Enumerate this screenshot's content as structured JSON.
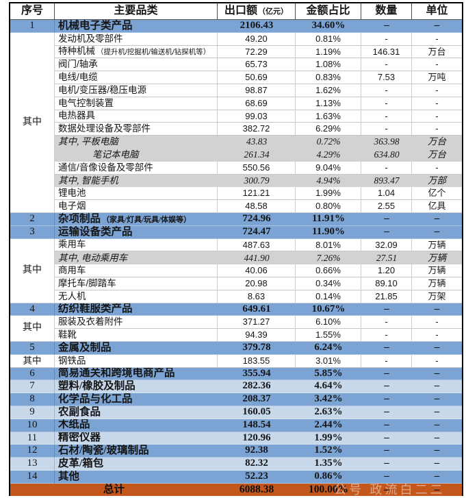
{
  "colors": {
    "blue": "#7BA4D4",
    "blue2": "#C7D8EB",
    "gray": "#D2D2D2",
    "orange": "#C4571C"
  },
  "header": {
    "c1": "序号",
    "c2": "主要品类",
    "c3_main": "出口额",
    "c3_note": "（亿元）",
    "c4": "金额占比",
    "c5": "数量",
    "c6": "单位"
  },
  "watermark": "公号 政流白二二",
  "table": {
    "rows": [
      {
        "type": "cat",
        "no": "1",
        "name": "机械电子类产品",
        "export": "2106.43",
        "share": "34.60%",
        "qty": "–",
        "unit": "–"
      },
      {
        "type": "sub",
        "no": "其中",
        "noRowspan": 14,
        "name": "发动机及零部件",
        "export": "49.20",
        "share": "0.81%",
        "qty": "-",
        "unit": "-"
      },
      {
        "type": "sub",
        "skipNo": true,
        "name": "特种机械",
        "note": "（提升机/挖掘机/输送机/钻探机等）",
        "export": "72.29",
        "share": "1.19%",
        "qty": "146.31",
        "unit": "万台"
      },
      {
        "type": "sub",
        "skipNo": true,
        "name": "阀门/轴承",
        "export": "65.73",
        "share": "1.08%",
        "qty": "-",
        "unit": "-"
      },
      {
        "type": "sub",
        "skipNo": true,
        "name": "电线/电缆",
        "export": "50.69",
        "share": "0.83%",
        "qty": "7.53",
        "unit": "万吨"
      },
      {
        "type": "sub",
        "skipNo": true,
        "name": "电机/变压器/稳压电源",
        "export": "98.87",
        "share": "1.62%",
        "qty": "-",
        "unit": "-"
      },
      {
        "type": "sub",
        "skipNo": true,
        "name": "电气控制装置",
        "export": "68.69",
        "share": "1.13%",
        "qty": "-",
        "unit": "-"
      },
      {
        "type": "sub",
        "skipNo": true,
        "name": "电热器具",
        "export": "99.03",
        "share": "1.63%",
        "qty": "-",
        "unit": "-"
      },
      {
        "type": "sub",
        "skipNo": true,
        "name": "数据处理设备及零部件",
        "export": "382.72",
        "share": "6.29%",
        "qty": "-",
        "unit": "-"
      },
      {
        "type": "gray",
        "skipNo": true,
        "name": "其中, 平板电脑",
        "export": "43.83",
        "share": "0.72%",
        "qty": "363.98",
        "unit": "万台"
      },
      {
        "type": "gray",
        "skipNo": true,
        "indent": true,
        "name": "笔记本电脑",
        "export": "261.34",
        "share": "4.29%",
        "qty": "634.80",
        "unit": "万台"
      },
      {
        "type": "sub",
        "skipNo": true,
        "name": "通信/音像设备及零部件",
        "export": "550.56",
        "share": "9.04%",
        "qty": "-",
        "unit": "-"
      },
      {
        "type": "gray",
        "skipNo": true,
        "name": "其中, 智能手机",
        "export": "300.79",
        "share": "4.94%",
        "qty": "893.47",
        "unit": "万部"
      },
      {
        "type": "sub",
        "skipNo": true,
        "name": "锂电池",
        "export": "121.21",
        "share": "1.99%",
        "qty": "1.04",
        "unit": "亿个"
      },
      {
        "type": "sub",
        "skipNo": true,
        "name": "电子烟",
        "export": "48.58",
        "share": "0.80%",
        "qty": "2.55",
        "unit": "亿具"
      },
      {
        "type": "cat",
        "no": "2",
        "name": "杂项制品",
        "note": "（家具/灯具/玩具/体娱等）",
        "export": "724.96",
        "share": "11.91%",
        "qty": "–",
        "unit": "–"
      },
      {
        "type": "cat",
        "no": "3",
        "name": "运输设备类产品",
        "export": "724.47",
        "share": "11.90%",
        "qty": "–",
        "unit": "–"
      },
      {
        "type": "sub",
        "no": "其中",
        "noRowspan": 5,
        "name": "乘用车",
        "export": "487.63",
        "share": "8.01%",
        "qty": "32.09",
        "unit": "万辆"
      },
      {
        "type": "gray",
        "skipNo": true,
        "name": "其中, 电动乘用车",
        "export": "441.90",
        "share": "7.26%",
        "qty": "27.51",
        "unit": "万辆"
      },
      {
        "type": "sub",
        "skipNo": true,
        "name": "商用车",
        "export": "40.06",
        "share": "0.66%",
        "qty": "1.20",
        "unit": "万辆"
      },
      {
        "type": "sub",
        "skipNo": true,
        "name": "摩托车/脚踏车",
        "export": "20.98",
        "share": "0.34%",
        "qty": "89.10",
        "unit": "万辆"
      },
      {
        "type": "sub",
        "skipNo": true,
        "name": "无人机",
        "export": "8.63",
        "share": "0.14%",
        "qty": "21.85",
        "unit": "万架"
      },
      {
        "type": "cat",
        "no": "4",
        "name": "纺织鞋服类产品",
        "export": "649.61",
        "share": "10.67%",
        "qty": "–",
        "unit": "–"
      },
      {
        "type": "sub",
        "no": "其中",
        "noRowspan": 2,
        "name": "服装及衣着附件",
        "export": "371.27",
        "share": "6.10%",
        "qty": "-",
        "unit": "-"
      },
      {
        "type": "sub",
        "skipNo": true,
        "name": "鞋靴",
        "export": "94.39",
        "share": "1.55%",
        "qty": "-",
        "unit": "-"
      },
      {
        "type": "cat",
        "no": "5",
        "name": "金属及制品",
        "export": "379.78",
        "share": "6.24%",
        "qty": "–",
        "unit": "–"
      },
      {
        "type": "sub",
        "no": "其中",
        "noQz": true,
        "name": "钢铁品",
        "export": "183.55",
        "share": "3.01%",
        "qty": "-",
        "unit": "-"
      },
      {
        "type": "cat",
        "no": "6",
        "name": "简易通关和跨境电商产品",
        "export": "355.94",
        "share": "5.85%",
        "qty": "–",
        "unit": "–"
      },
      {
        "type": "cat2",
        "no": "7",
        "name": "塑料/橡胶及制品",
        "export": "282.36",
        "share": "4.64%",
        "qty": "–",
        "unit": "–"
      },
      {
        "type": "cat",
        "no": "8",
        "name": "化学品与化工品",
        "export": "208.37",
        "share": "3.42%",
        "qty": "–",
        "unit": "–"
      },
      {
        "type": "cat2",
        "no": "9",
        "name": "农副食品",
        "export": "160.05",
        "share": "2.63%",
        "qty": "–",
        "unit": "–"
      },
      {
        "type": "cat",
        "no": "10",
        "name": "木纸品",
        "export": "148.54",
        "share": "2.44%",
        "qty": "–",
        "unit": "–"
      },
      {
        "type": "cat2",
        "no": "11",
        "name": "精密仪器",
        "export": "120.96",
        "share": "1.99%",
        "qty": "–",
        "unit": "–"
      },
      {
        "type": "cat",
        "no": "12",
        "name": "石材/陶瓷/玻璃制品",
        "export": "92.38",
        "share": "1.52%",
        "qty": "–",
        "unit": "–"
      },
      {
        "type": "cat2",
        "no": "13",
        "name": "皮革/箱包",
        "export": "82.32",
        "share": "1.35%",
        "qty": "–",
        "unit": "–"
      },
      {
        "type": "cat",
        "no": "14",
        "name": "其他",
        "export": "52.23",
        "share": "0.86%",
        "qty": "–",
        "unit": "–"
      },
      {
        "type": "total",
        "totalLabel": "总计",
        "export": "6088.38",
        "share": "100.00%",
        "qty": "–",
        "unit": "–"
      }
    ]
  }
}
